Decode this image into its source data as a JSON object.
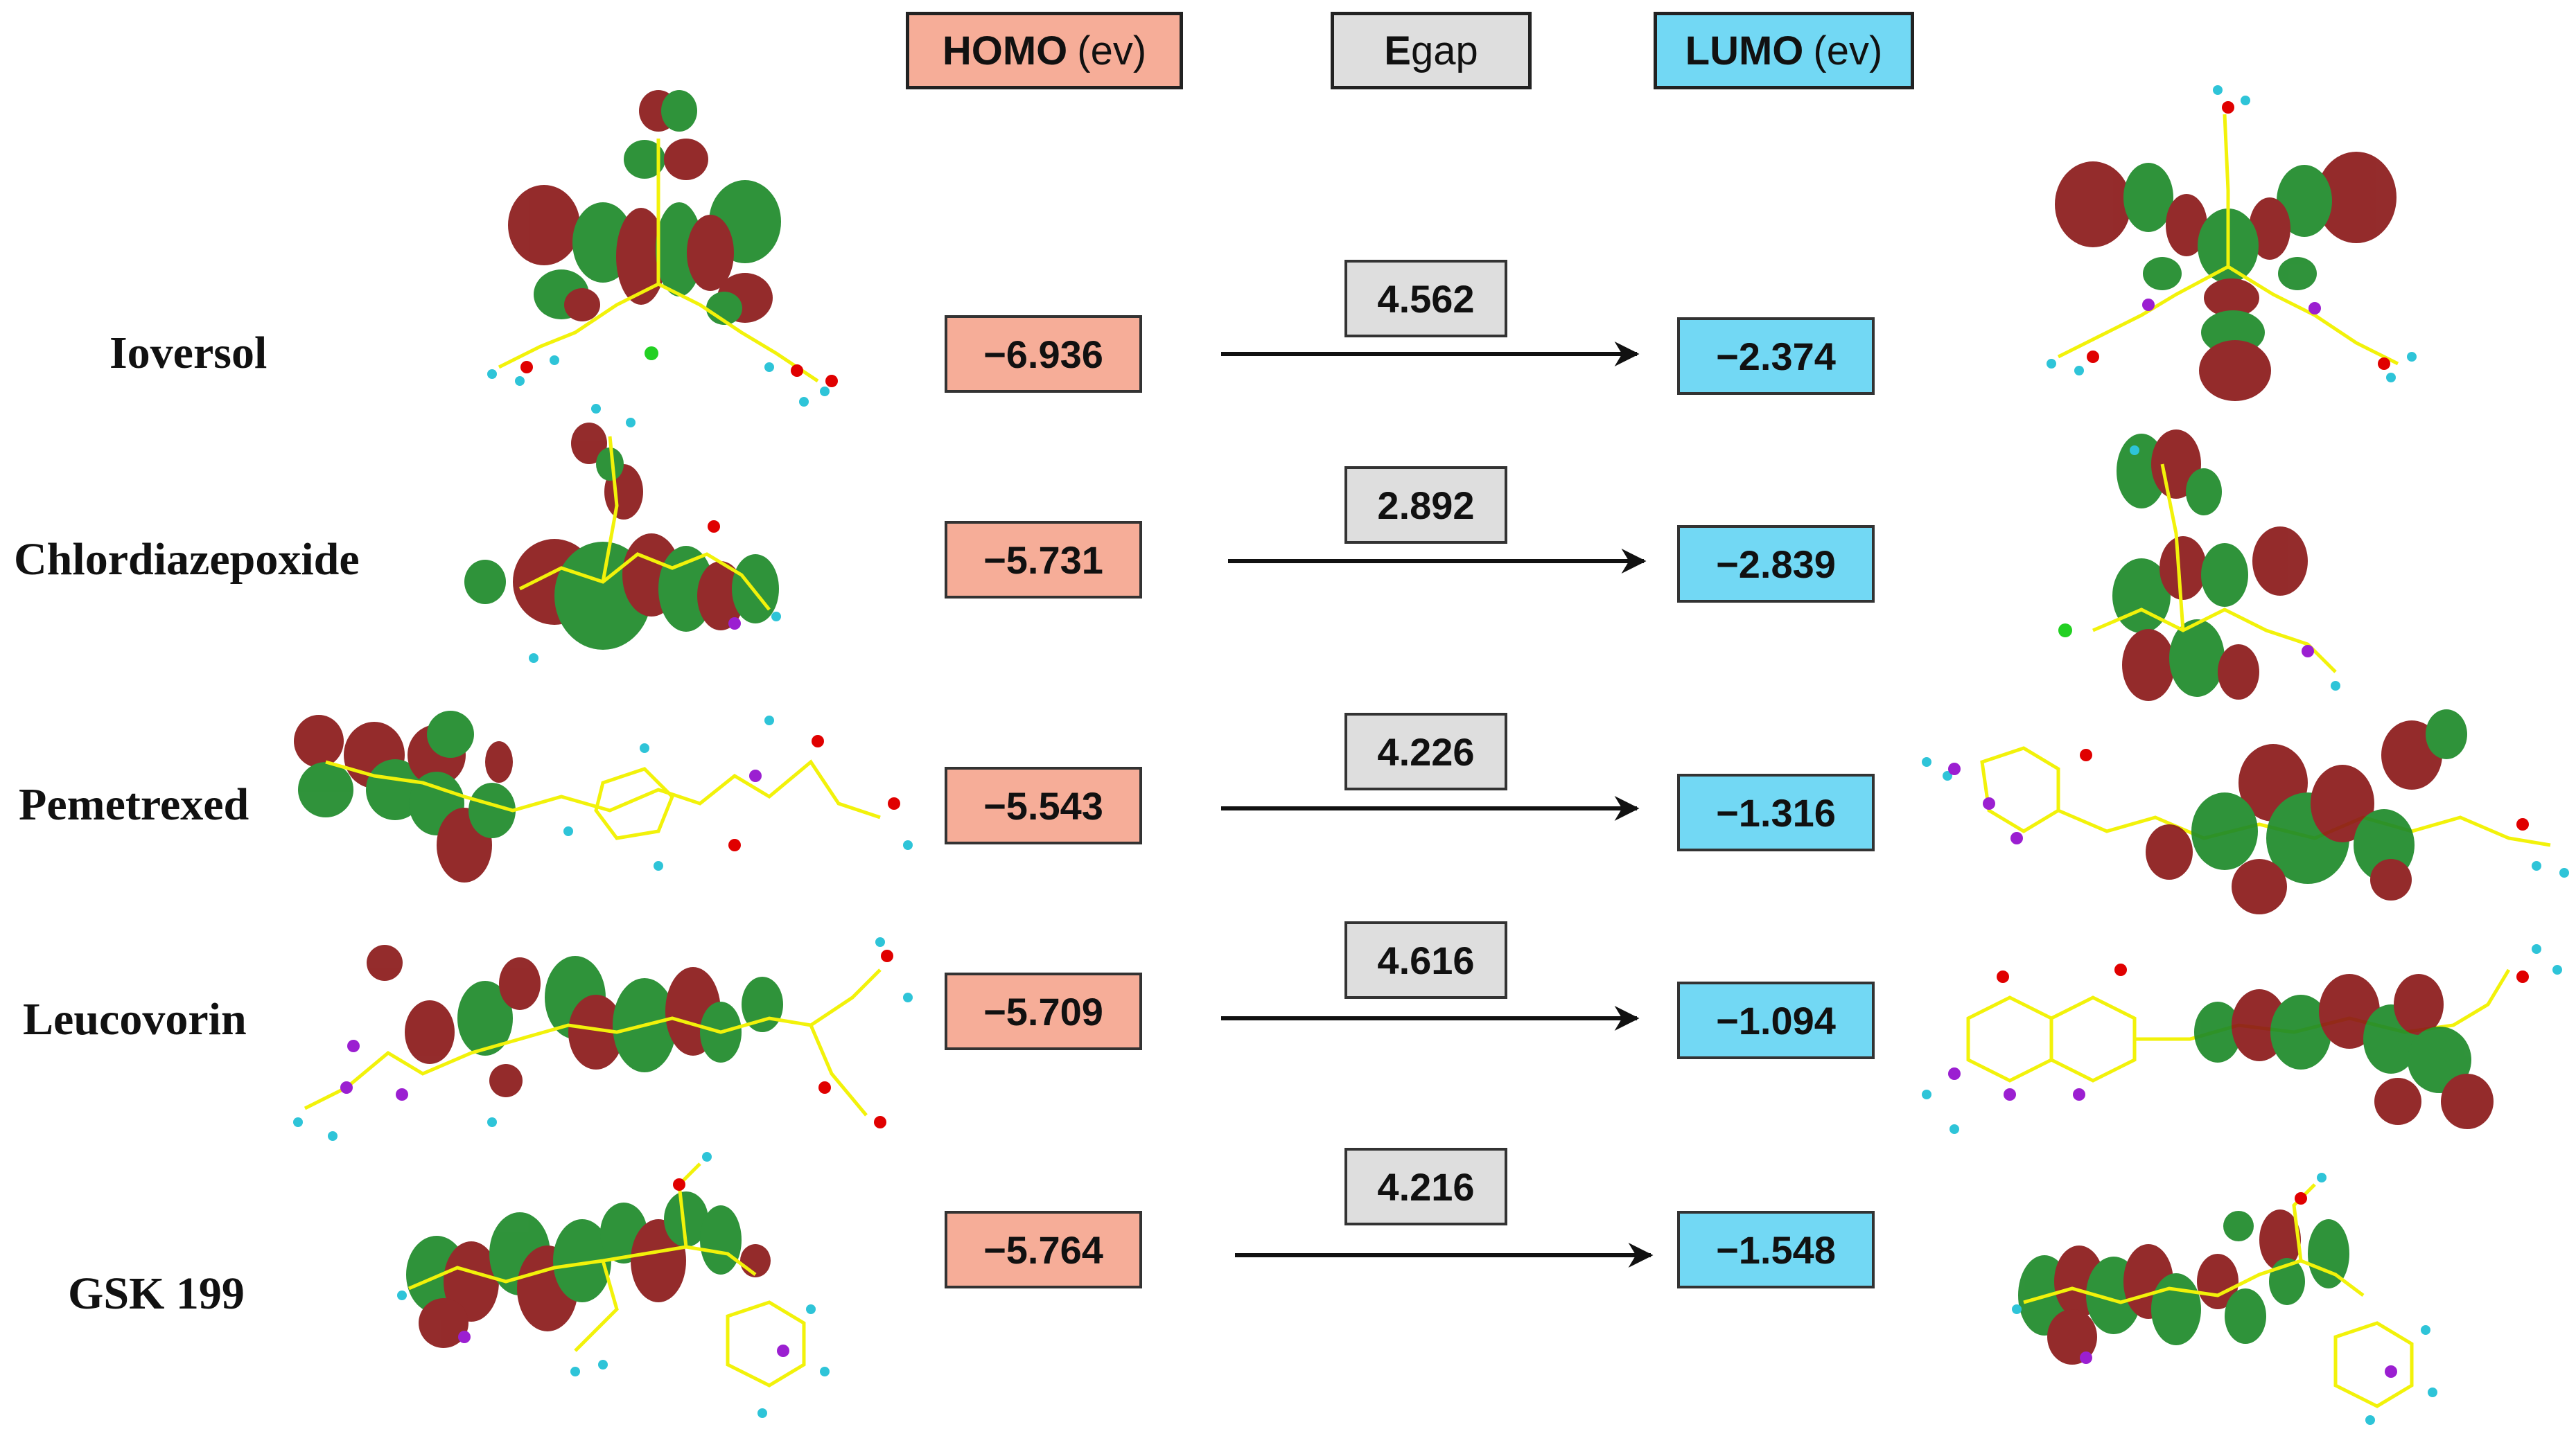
{
  "headers": {
    "homo": {
      "bold": "HOMO",
      "unit": "(ev)"
    },
    "egap": {
      "bold": "E",
      "rest": "gap"
    },
    "lumo": {
      "bold": "LUMO",
      "unit": "(ev)"
    }
  },
  "molecules": [
    {
      "name": "Ioversol",
      "homo": "−6.936",
      "egap": "4.562",
      "lumo": "−2.374"
    },
    {
      "name": "Chlordiazepoxide",
      "homo": "−5.731",
      "egap": "2.892",
      "lumo": "−2.839"
    },
    {
      "name": "Pemetrexed",
      "homo": "−5.543",
      "egap": "4.226",
      "lumo": "−1.316"
    },
    {
      "name": "Leucovorin",
      "homo": "−5.709",
      "egap": "4.616",
      "lumo": "−1.094"
    },
    {
      "name": "GSK 199",
      "homo": "−5.764",
      "egap": "4.216",
      "lumo": "−1.548"
    }
  ],
  "colors": {
    "homo_box": "#f6ad98",
    "lumo_box": "#72d8f4",
    "gap_box": "#dedede",
    "orbital_positive": "#8b1a1a",
    "orbital_negative": "#1e8a2a",
    "atom_carbon": "#f2f20a",
    "atom_hydrogen": "#2ec4d8",
    "atom_oxygen": "#e00000",
    "atom_nitrogen": "#9b1fd1",
    "atom_chlorine": "#22d022"
  }
}
